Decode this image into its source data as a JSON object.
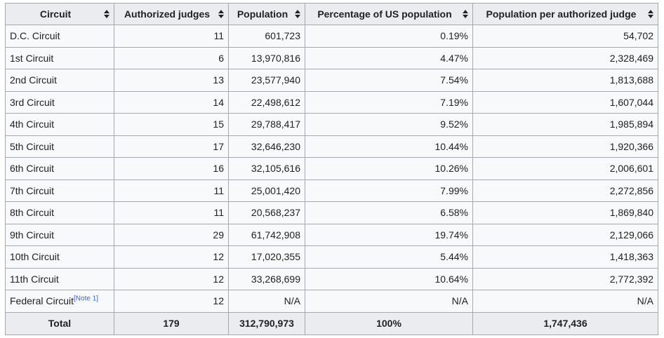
{
  "table": {
    "headers": [
      "Circuit",
      "Authorized judges",
      "Population",
      "Percentage of US population",
      "Population per authorized judge"
    ],
    "rows": [
      [
        "D.C. Circuit",
        "11",
        "601,723",
        "0.19%",
        "54,702"
      ],
      [
        "1st Circuit",
        "6",
        "13,970,816",
        "4.47%",
        "2,328,469"
      ],
      [
        "2nd Circuit",
        "13",
        "23,577,940",
        "7.54%",
        "1,813,688"
      ],
      [
        "3rd Circuit",
        "14",
        "22,498,612",
        "7.19%",
        "1,607,044"
      ],
      [
        "4th Circuit",
        "15",
        "29,788,417",
        "9.52%",
        "1,985,894"
      ],
      [
        "5th Circuit",
        "17",
        "32,646,230",
        "10.44%",
        "1,920,366"
      ],
      [
        "6th Circuit",
        "16",
        "32,105,616",
        "10.26%",
        "2,006,601"
      ],
      [
        "7th Circuit",
        "11",
        "25,001,420",
        "7.99%",
        "2,272,856"
      ],
      [
        "8th Circuit",
        "11",
        "20,568,237",
        "6.58%",
        "1,869,840"
      ],
      [
        "9th Circuit",
        "29",
        "61,742,908",
        "19.74%",
        "2,129,066"
      ],
      [
        "10th Circuit",
        "12",
        "17,020,355",
        "5.44%",
        "1,418,363"
      ],
      [
        "11th Circuit",
        "12",
        "33,268,699",
        "10.64%",
        "2,772,392"
      ],
      [
        "Federal Circuit",
        "12",
        "N/A",
        "N/A",
        "N/A"
      ]
    ],
    "federal_note": "[Note 1]",
    "total": [
      "Total",
      "179",
      "312,790,973",
      "100%",
      "1,747,436"
    ]
  },
  "icons": {
    "sort": "sort-arrows-icon"
  },
  "colors": {
    "header_bg": "#eaecf0",
    "cell_bg": "#f8f9fa",
    "border": "#a2a9b1",
    "link": "#3366cc"
  }
}
